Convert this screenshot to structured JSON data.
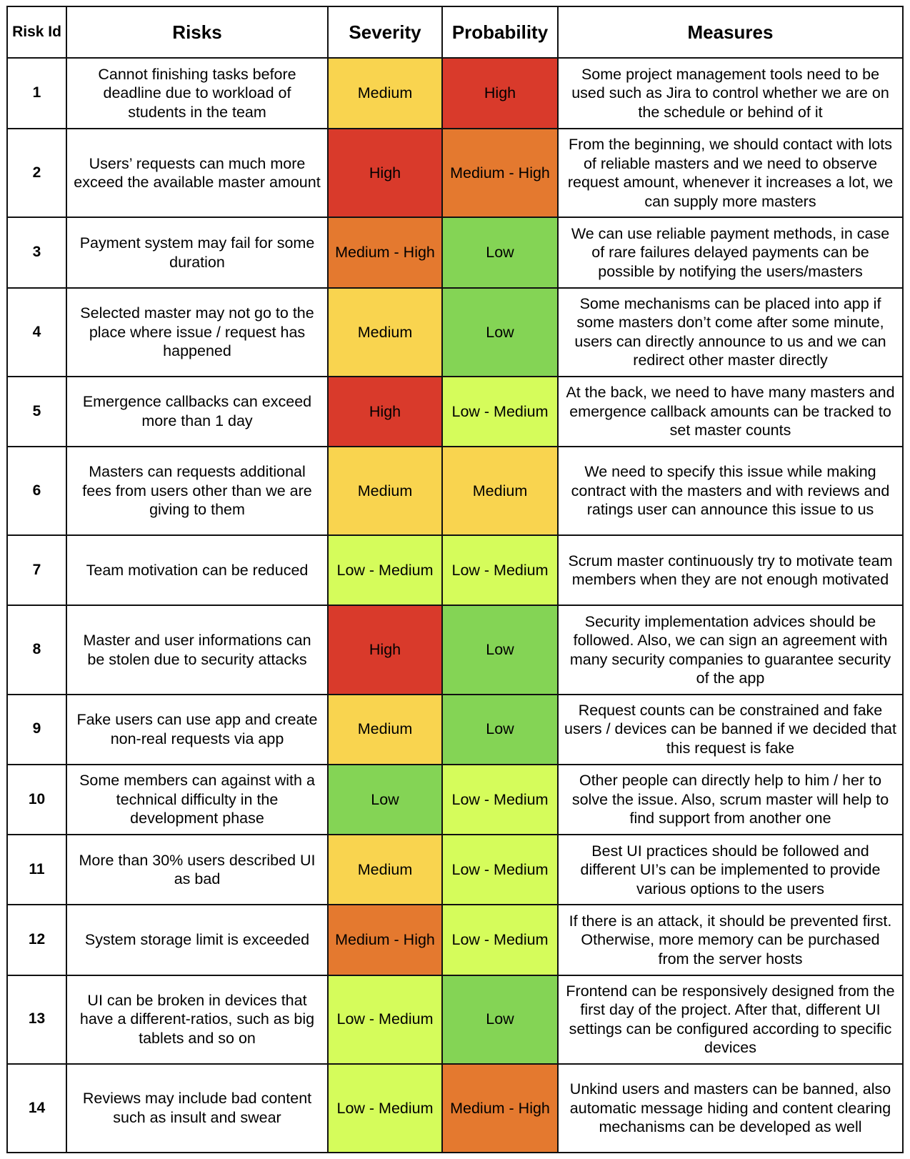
{
  "columns": {
    "id": "Risk Id",
    "risk": "Risks",
    "severity": "Severity",
    "probability": "Probability",
    "measures": "Measures"
  },
  "level_colors": {
    "High": "#d93a2b",
    "Medium - High": "#e4792f",
    "Medium": "#f9d44f",
    "Low - Medium": "#d5fc5b",
    "Low": "#84d455"
  },
  "rows": [
    {
      "id": "1",
      "risk": "Cannot finishing tasks before deadline due to workload of students in the team",
      "severity": "Medium",
      "probability": "High",
      "measures": "Some project management tools need to be used such as Jira to control whether we are on the schedule or behind of it"
    },
    {
      "id": "2",
      "risk": "Users’ requests can much more exceed the available master amount",
      "severity": "High",
      "probability": "Medium - High",
      "measures": "From the beginning, we should contact with lots of reliable masters and we need to observe request amount, whenever it increases a lot, we can supply more masters"
    },
    {
      "id": "3",
      "risk": "Payment system may fail for some duration",
      "severity": "Medium - High",
      "probability": "Low",
      "measures": "We can use reliable payment methods, in case of rare failures delayed payments can be possible by notifying the users/masters"
    },
    {
      "id": "4",
      "risk": "Selected master may not go to the place where issue / request has happened",
      "severity": "Medium",
      "probability": "Low",
      "measures": "Some mechanisms can be placed into app if some masters don’t come after some minute, users can directly announce to us and we can redirect other master directly"
    },
    {
      "id": "5",
      "risk": "Emergence callbacks can exceed more than 1 day",
      "severity": "High",
      "probability": "Low - Medium",
      "measures": "At the back, we need to have many masters and emergence callback amounts can be tracked to set master counts"
    },
    {
      "id": "6",
      "risk": "Masters can requests additional fees from users other than we are giving to them",
      "severity": "Medium",
      "probability": "Medium",
      "measures": "We need to specify this issue while making contract with the masters and with reviews and ratings user can announce this issue to us"
    },
    {
      "id": "7",
      "risk": "Team motivation can be reduced",
      "severity": "Low - Medium",
      "probability": "Low - Medium",
      "measures": "Scrum master continuously try to motivate team members when they are not enough motivated"
    },
    {
      "id": "8",
      "risk": "Master and user informations can be stolen due to security attacks",
      "severity": "High",
      "probability": "Low",
      "measures": "Security implementation advices should be followed. Also, we can sign an agreement with many security companies to guarantee security of the app"
    },
    {
      "id": "9",
      "risk": "Fake users can use app and create non-real requests via app",
      "severity": "Medium",
      "probability": "Low",
      "measures": "Request counts can be constrained and fake users / devices can be banned if we decided that this request is fake"
    },
    {
      "id": "10",
      "risk": "Some members can against with a technical difficulty in the development phase",
      "severity": "Low",
      "probability": "Low - Medium",
      "measures": "Other people can directly help to him / her to solve the issue. Also, scrum master will help to find support from another one"
    },
    {
      "id": "11",
      "risk": "More than 30% users described UI as bad",
      "severity": "Medium",
      "probability": "Low - Medium",
      "measures": "Best UI practices should be followed and different UI’s can be implemented to provide various options to the users"
    },
    {
      "id": "12",
      "risk": "System storage limit is exceeded",
      "severity": "Medium - High",
      "probability": "Low - Medium",
      "measures": "If there is an attack, it should be prevented first. Otherwise, more memory can be purchased from the server hosts"
    },
    {
      "id": "13",
      "risk": "UI can be broken in devices that have a different-ratios, such as big tablets and so on",
      "severity": "Low - Medium",
      "probability": "Low",
      "measures": "Frontend can be responsively designed from the first day of the project. After that, different UI settings can be configured according to specific devices"
    },
    {
      "id": "14",
      "risk": "Reviews may include bad content such as insult and swear",
      "severity": "Low - Medium",
      "probability": "Medium - High",
      "measures": "Unkind users and masters can be banned, also automatic message hiding and content clearing mechanisms can be developed as well"
    }
  ]
}
